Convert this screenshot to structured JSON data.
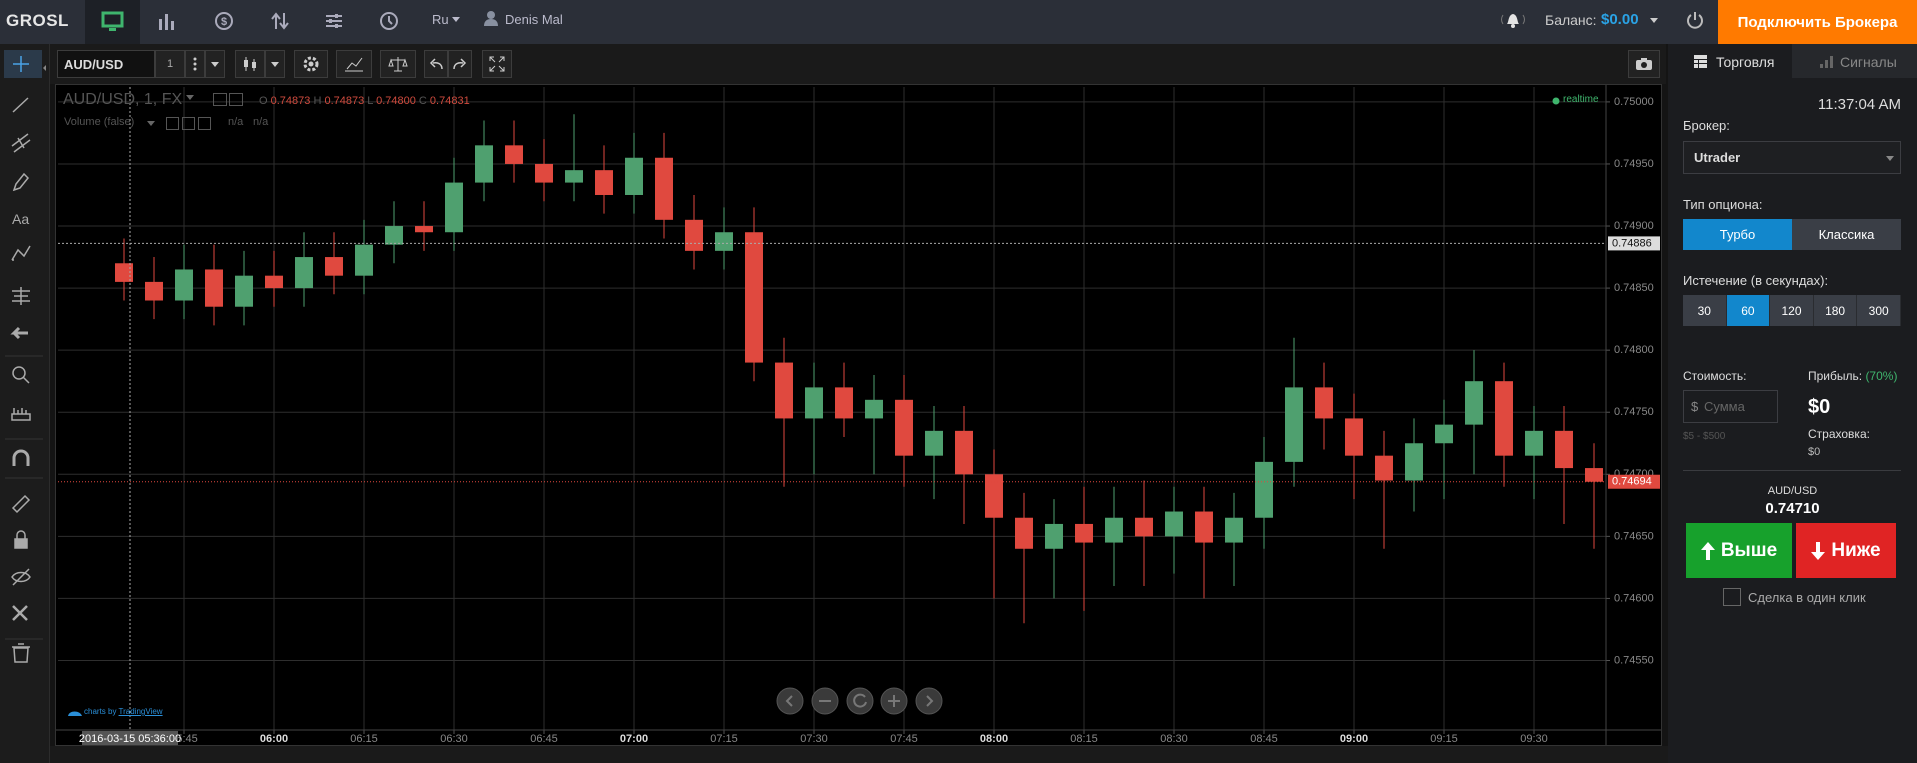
{
  "header": {
    "logo": "GROSL",
    "language": "Ru",
    "user": "Denis Mal",
    "balance_label": "Баланс:",
    "balance": "$0.00",
    "connect_button": "Подключить Брокера"
  },
  "toolbar": {
    "symbol": "AUD/USD",
    "interval": "1"
  },
  "chart_data": {
    "type": "candlestick",
    "title": "AUD/USD, 1, FX",
    "legend": {
      "open_label": "O",
      "open": "0.74873",
      "high_label": "H",
      "high": "0.74873",
      "low_label": "L",
      "low": "0.74800",
      "close_label": "C",
      "close": "0.74831"
    },
    "volume_label": "Volume (false)",
    "volume_values": [
      "n/a",
      "n/a"
    ],
    "realtime": "realtime",
    "attribution_prefix": "charts by",
    "attribution": "TradingView",
    "crosshair_time": "2016-03-15 05:36:00",
    "crosshair_price": 0.74886,
    "last_price": 0.74694,
    "up_color": "#4fa06f",
    "down_color": "#e0493f",
    "grid": true,
    "xlim": [
      "05:24",
      "09:42"
    ],
    "xticks": [
      "05:45",
      "06:00",
      "06:15",
      "06:30",
      "06:45",
      "07:00",
      "07:15",
      "07:30",
      "07:45",
      "08:00",
      "08:15",
      "08:30",
      "08:45",
      "09:00",
      "09:15",
      "09:30"
    ],
    "ylim": [
      0.74494,
      0.75012
    ],
    "yticks": [
      {
        "value": 0.7455,
        "label": "0.74550"
      },
      {
        "value": 0.746,
        "label": "0.74600"
      },
      {
        "value": 0.7465,
        "label": "0.74650"
      },
      {
        "value": 0.747,
        "label": "0.74700"
      },
      {
        "value": 0.7475,
        "label": "0.74750"
      },
      {
        "value": 0.748,
        "label": "0.74800"
      },
      {
        "value": 0.7485,
        "label": "0.74850"
      },
      {
        "value": 0.749,
        "label": "0.74900"
      },
      {
        "value": 0.7495,
        "label": "0.74950"
      },
      {
        "value": 0.75,
        "label": "0.75000"
      }
    ],
    "x": [
      "05:35",
      "05:40",
      "05:45",
      "05:50",
      "05:55",
      "06:00",
      "06:05",
      "06:10",
      "06:15",
      "06:20",
      "06:25",
      "06:30",
      "06:35",
      "06:40",
      "06:45",
      "06:50",
      "06:55",
      "07:00",
      "07:05",
      "07:10",
      "07:15",
      "07:20",
      "07:25",
      "07:30",
      "07:35",
      "07:40",
      "07:45",
      "07:50",
      "07:55",
      "08:00",
      "08:05",
      "08:10",
      "08:15",
      "08:20",
      "08:25",
      "08:30",
      "08:35",
      "08:40",
      "08:45",
      "08:50",
      "08:55",
      "09:00",
      "09:05",
      "09:10",
      "09:15",
      "09:20",
      "09:25",
      "09:30",
      "09:35",
      "09:40"
    ],
    "open": [
      0.7487,
      0.74855,
      0.7484,
      0.74865,
      0.74835,
      0.7486,
      0.7485,
      0.74875,
      0.7486,
      0.74885,
      0.749,
      0.74895,
      0.74935,
      0.74965,
      0.7495,
      0.74935,
      0.74945,
      0.74925,
      0.74955,
      0.74905,
      0.7488,
      0.74895,
      0.7479,
      0.74745,
      0.7477,
      0.74745,
      0.7476,
      0.74715,
      0.74735,
      0.747,
      0.74665,
      0.7464,
      0.7466,
      0.74645,
      0.74665,
      0.7465,
      0.7467,
      0.74645,
      0.74665,
      0.7471,
      0.7477,
      0.74745,
      0.74715,
      0.74695,
      0.74725,
      0.7474,
      0.74775,
      0.74715,
      0.74735,
      0.74705
    ],
    "high": [
      0.7489,
      0.74875,
      0.74885,
      0.74885,
      0.7488,
      0.7488,
      0.74895,
      0.74895,
      0.74905,
      0.7492,
      0.7492,
      0.74955,
      0.74985,
      0.74985,
      0.7497,
      0.7499,
      0.74965,
      0.74975,
      0.74975,
      0.74925,
      0.74915,
      0.74915,
      0.7481,
      0.7479,
      0.7479,
      0.7478,
      0.7478,
      0.74755,
      0.74755,
      0.7472,
      0.74685,
      0.7468,
      0.7469,
      0.7469,
      0.74695,
      0.7469,
      0.7469,
      0.74685,
      0.7473,
      0.7481,
      0.7479,
      0.74765,
      0.74735,
      0.74745,
      0.7476,
      0.748,
      0.7479,
      0.74755,
      0.74755,
      0.74725
    ],
    "low": [
      0.7484,
      0.74825,
      0.74825,
      0.7482,
      0.7482,
      0.74835,
      0.74835,
      0.74845,
      0.74845,
      0.7487,
      0.7488,
      0.7488,
      0.7492,
      0.74935,
      0.7492,
      0.7492,
      0.7491,
      0.7491,
      0.7489,
      0.74865,
      0.74865,
      0.74775,
      0.7469,
      0.747,
      0.7473,
      0.747,
      0.7469,
      0.7468,
      0.7466,
      0.746,
      0.7458,
      0.746,
      0.7459,
      0.7461,
      0.7461,
      0.7462,
      0.746,
      0.7461,
      0.7464,
      0.7469,
      0.7472,
      0.7468,
      0.7464,
      0.7467,
      0.7468,
      0.747,
      0.7469,
      0.7468,
      0.7466,
      0.7464
    ],
    "close": [
      0.74855,
      0.7484,
      0.74865,
      0.74835,
      0.7486,
      0.7485,
      0.74875,
      0.7486,
      0.74885,
      0.749,
      0.74895,
      0.74935,
      0.74965,
      0.7495,
      0.74935,
      0.74945,
      0.74925,
      0.74955,
      0.74905,
      0.7488,
      0.74895,
      0.7479,
      0.74745,
      0.7477,
      0.74745,
      0.7476,
      0.74715,
      0.74735,
      0.747,
      0.74665,
      0.7464,
      0.7466,
      0.74645,
      0.74665,
      0.7465,
      0.7467,
      0.74645,
      0.74665,
      0.7471,
      0.7477,
      0.74745,
      0.74715,
      0.74695,
      0.74725,
      0.7474,
      0.74775,
      0.74715,
      0.74735,
      0.74705,
      0.74694
    ]
  },
  "panel": {
    "tabs": [
      "Торговля",
      "Сигналы"
    ],
    "time": "11:37:04 AM",
    "broker_label": "Брокер:",
    "broker": "Utrader",
    "option_type_label": "Тип опциона:",
    "option_types": [
      "Турбо",
      "Классика"
    ],
    "expiry_label": "Истечение (в секундах):",
    "expiry_options": [
      30,
      60,
      120,
      180,
      300
    ],
    "cost_label": "Стоимость:",
    "currency": "$",
    "amount_placeholder": "Сумма",
    "range": "$5 - $500",
    "profit_label": "Прибыль:",
    "profit_percent": "(70%)",
    "profit": "$0",
    "insurance_label": "Страховка:",
    "insurance": "$0",
    "pair": "AUD/USD",
    "price": "0.74710",
    "up_button": "Выше",
    "down_button": "Ниже",
    "one_click": "Сделка в один клик"
  }
}
